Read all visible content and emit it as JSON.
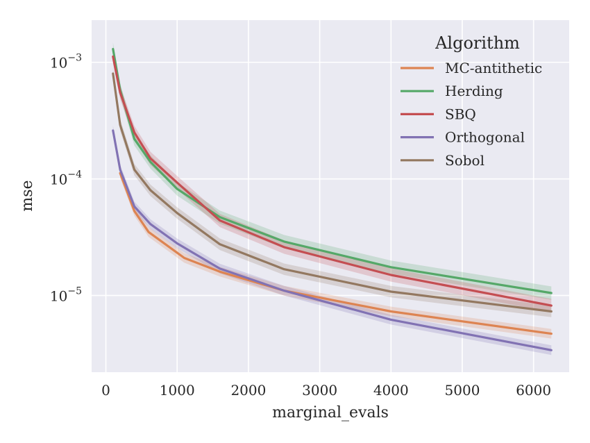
{
  "chart_data": {
    "type": "line",
    "xlabel": "marginal_evals",
    "ylabel": "mse",
    "xlim": [
      -200,
      6500
    ],
    "ylim": [
      2.2e-06,
      0.0023
    ],
    "yscale": "log",
    "xticks": [
      0,
      1000,
      2000,
      3000,
      4000,
      5000,
      6000
    ],
    "xtick_labels": [
      "0",
      "1000",
      "2000",
      "3000",
      "4000",
      "5000",
      "6000"
    ],
    "yticks": [
      1e-05,
      0.0001,
      0.001
    ],
    "ytick_labels": [
      {
        "base": "10",
        "exp": "−5"
      },
      {
        "base": "10",
        "exp": "−4"
      },
      {
        "base": "10",
        "exp": "−3"
      }
    ],
    "grid": true,
    "legend": {
      "title": "Algorithm",
      "position": "top-right"
    },
    "series": [
      {
        "name": "MC-antithetic",
        "color": "#dd8452",
        "x": [
          200,
          400,
          600,
          1100,
          1600,
          2500,
          4000,
          6250
        ],
        "y": [
          0.000112,
          5.3e-05,
          3.5e-05,
          2.1e-05,
          1.6e-05,
          1.1e-05,
          7.3e-06,
          4.7e-06
        ],
        "band": 0.1
      },
      {
        "name": "Herding",
        "color": "#55a868",
        "x": [
          100,
          200,
          400,
          625,
          1000,
          1600,
          2500,
          4000,
          6250
        ],
        "y": [
          0.0013,
          0.00058,
          0.00022,
          0.00014,
          8.2e-05,
          4.7e-05,
          2.9e-05,
          1.75e-05,
          1.05e-05
        ],
        "band": 0.14
      },
      {
        "name": "SBQ",
        "color": "#c44e52",
        "x": [
          100,
          200,
          400,
          625,
          1000,
          1600,
          2500,
          4000,
          6250
        ],
        "y": [
          0.00112,
          0.00055,
          0.00025,
          0.00015,
          9.3e-05,
          4.4e-05,
          2.6e-05,
          1.5e-05,
          8.2e-06
        ],
        "band": 0.14
      },
      {
        "name": "Orthogonal",
        "color": "#8172b3",
        "x": [
          100,
          200,
          400,
          625,
          1000,
          1600,
          2500,
          4000,
          6250
        ],
        "y": [
          0.00026,
          0.00012,
          5.8e-05,
          4.1e-05,
          2.8e-05,
          1.7e-05,
          1.1e-05,
          6.2e-06,
          3.4e-06
        ],
        "band": 0.1
      },
      {
        "name": "Sobol",
        "color": "#937860",
        "x": [
          100,
          200,
          400,
          625,
          1000,
          1600,
          2500,
          4000,
          6250
        ],
        "y": [
          0.0008,
          0.00029,
          0.00012,
          8e-05,
          5.1e-05,
          2.75e-05,
          1.68e-05,
          1.08e-05,
          7.3e-06
        ],
        "band": 0.12
      }
    ]
  },
  "style": {
    "plot_background": "#eaeaf2",
    "grid_color": "#ffffff",
    "text_color": "#262626"
  }
}
